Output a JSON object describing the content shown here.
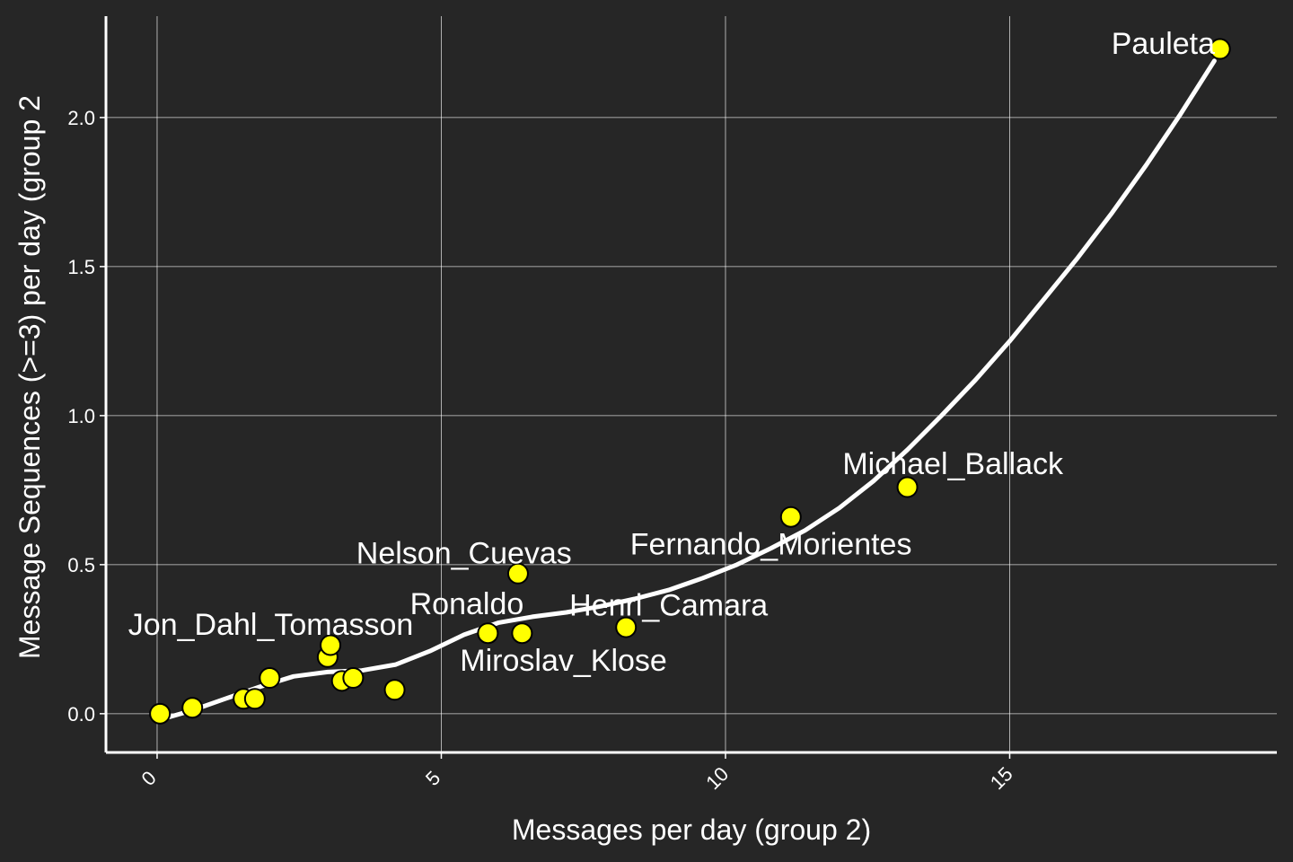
{
  "chart_data": {
    "type": "scatter",
    "title": "",
    "xlabel": "Messages per day (group 2)",
    "ylabel": "Message Sequences (>=3) per day (group 2",
    "xlim": [
      -0.9,
      19.7
    ],
    "ylim": [
      -0.13,
      2.34
    ],
    "x_ticks": [
      0,
      5,
      10,
      15
    ],
    "x_tick_labels": [
      "0",
      "5",
      "10",
      "15"
    ],
    "y_ticks": [
      0.0,
      0.5,
      1.0,
      1.5,
      2.0
    ],
    "y_tick_labels": [
      "0.0",
      "0.5",
      "1.0",
      "1.5",
      "2.0"
    ],
    "grid": true,
    "colors": {
      "background": "#262626",
      "grid": "#ffffff",
      "point_fill": "#ffff00",
      "point_stroke": "#000000",
      "smooth_line": "#ffffff",
      "text": "#ffffff"
    },
    "points": [
      {
        "x": 0.05,
        "y": 0.0
      },
      {
        "x": 0.62,
        "y": 0.02
      },
      {
        "x": 1.52,
        "y": 0.05
      },
      {
        "x": 1.72,
        "y": 0.05
      },
      {
        "x": 1.98,
        "y": 0.12
      },
      {
        "x": 3.0,
        "y": 0.19
      },
      {
        "x": 3.05,
        "y": 0.23
      },
      {
        "x": 3.25,
        "y": 0.11
      },
      {
        "x": 3.45,
        "y": 0.12
      },
      {
        "x": 4.18,
        "y": 0.08
      },
      {
        "x": 5.82,
        "y": 0.27
      },
      {
        "x": 6.35,
        "y": 0.47
      },
      {
        "x": 6.42,
        "y": 0.27
      },
      {
        "x": 8.25,
        "y": 0.29
      },
      {
        "x": 11.15,
        "y": 0.66
      },
      {
        "x": 13.2,
        "y": 0.76
      },
      {
        "x": 18.7,
        "y": 2.23
      }
    ],
    "labels": [
      {
        "text": "Pauleta",
        "x": 17.7,
        "y": 2.25
      },
      {
        "text": "Michael_Ballack",
        "x": 14.0,
        "y": 0.84
      },
      {
        "text": "Fernando_Morientes",
        "x": 10.8,
        "y": 0.57
      },
      {
        "text": "Nelson_Cuevas",
        "x": 5.4,
        "y": 0.54
      },
      {
        "text": "Ronaldo",
        "x": 5.45,
        "y": 0.37
      },
      {
        "text": "Henri_Camara",
        "x": 9.0,
        "y": 0.365
      },
      {
        "text": "Jon_Dahl_Tomasson",
        "x": 2.0,
        "y": 0.3
      },
      {
        "text": "Miroslav_Klose",
        "x": 7.15,
        "y": 0.18
      }
    ],
    "smooth": [
      {
        "x": 0.05,
        "y": -0.02
      },
      {
        "x": 0.6,
        "y": 0.01
      },
      {
        "x": 1.2,
        "y": 0.05
      },
      {
        "x": 1.8,
        "y": 0.09
      },
      {
        "x": 2.4,
        "y": 0.125
      },
      {
        "x": 3.0,
        "y": 0.14
      },
      {
        "x": 3.6,
        "y": 0.145
      },
      {
        "x": 4.2,
        "y": 0.165
      },
      {
        "x": 4.8,
        "y": 0.21
      },
      {
        "x": 5.4,
        "y": 0.265
      },
      {
        "x": 6.0,
        "y": 0.305
      },
      {
        "x": 6.6,
        "y": 0.325
      },
      {
        "x": 7.2,
        "y": 0.34
      },
      {
        "x": 7.8,
        "y": 0.36
      },
      {
        "x": 8.4,
        "y": 0.385
      },
      {
        "x": 9.0,
        "y": 0.415
      },
      {
        "x": 9.6,
        "y": 0.455
      },
      {
        "x": 10.2,
        "y": 0.5
      },
      {
        "x": 10.8,
        "y": 0.555
      },
      {
        "x": 11.4,
        "y": 0.615
      },
      {
        "x": 12.0,
        "y": 0.69
      },
      {
        "x": 12.6,
        "y": 0.78
      },
      {
        "x": 13.2,
        "y": 0.885
      },
      {
        "x": 13.8,
        "y": 1.0
      },
      {
        "x": 14.4,
        "y": 1.12
      },
      {
        "x": 15.0,
        "y": 1.25
      },
      {
        "x": 15.6,
        "y": 1.39
      },
      {
        "x": 16.2,
        "y": 1.53
      },
      {
        "x": 16.8,
        "y": 1.68
      },
      {
        "x": 17.4,
        "y": 1.84
      },
      {
        "x": 18.0,
        "y": 2.01
      },
      {
        "x": 18.6,
        "y": 2.19
      }
    ]
  }
}
